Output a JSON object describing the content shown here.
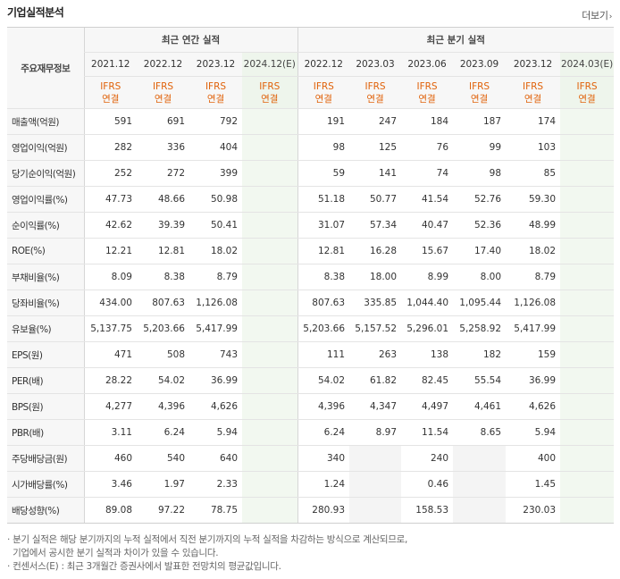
{
  "title": "기업실적분석",
  "more_label": "더보기",
  "more_icon": "chevron-right-icon",
  "header": {
    "rowhead": "주요재무정보",
    "annual_group": "최근 연간 실적",
    "quarter_group": "최근 분기 실적",
    "annual_periods": [
      "2021.12",
      "2022.12",
      "2023.12",
      "2024.12(E)"
    ],
    "quarter_periods": [
      "2022.12",
      "2023.03",
      "2023.06",
      "2023.09",
      "2023.12",
      "2024.03(E)"
    ],
    "ifrs_line1": "IFRS",
    "ifrs_line2": "연결"
  },
  "rows": [
    {
      "label": "매출액(억원)",
      "annual": [
        "591",
        "691",
        "792",
        ""
      ],
      "quarter": [
        "191",
        "247",
        "184",
        "187",
        "174",
        ""
      ]
    },
    {
      "label": "영업이익(억원)",
      "annual": [
        "282",
        "336",
        "404",
        ""
      ],
      "quarter": [
        "98",
        "125",
        "76",
        "99",
        "103",
        ""
      ]
    },
    {
      "label": "당기순이익(억원)",
      "annual": [
        "252",
        "272",
        "399",
        ""
      ],
      "quarter": [
        "59",
        "141",
        "74",
        "98",
        "85",
        ""
      ]
    },
    {
      "label": "영업이익률(%)",
      "annual": [
        "47.73",
        "48.66",
        "50.98",
        ""
      ],
      "quarter": [
        "51.18",
        "50.77",
        "41.54",
        "52.76",
        "59.30",
        ""
      ]
    },
    {
      "label": "순이익률(%)",
      "annual": [
        "42.62",
        "39.39",
        "50.41",
        ""
      ],
      "quarter": [
        "31.07",
        "57.34",
        "40.47",
        "52.36",
        "48.99",
        ""
      ]
    },
    {
      "label": "ROE(%)",
      "annual": [
        "12.21",
        "12.81",
        "18.02",
        ""
      ],
      "quarter": [
        "12.81",
        "16.28",
        "15.67",
        "17.40",
        "18.02",
        ""
      ]
    },
    {
      "label": "부채비율(%)",
      "annual": [
        "8.09",
        "8.38",
        "8.79",
        ""
      ],
      "quarter": [
        "8.38",
        "18.00",
        "8.99",
        "8.00",
        "8.79",
        ""
      ]
    },
    {
      "label": "당좌비율(%)",
      "annual": [
        "434.00",
        "807.63",
        "1,126.08",
        ""
      ],
      "quarter": [
        "807.63",
        "335.85",
        "1,044.40",
        "1,095.44",
        "1,126.08",
        ""
      ]
    },
    {
      "label": "유보율(%)",
      "annual": [
        "5,137.75",
        "5,203.66",
        "5,417.99",
        ""
      ],
      "quarter": [
        "5,203.66",
        "5,157.52",
        "5,296.01",
        "5,258.92",
        "5,417.99",
        ""
      ]
    },
    {
      "label": "EPS(원)",
      "annual": [
        "471",
        "508",
        "743",
        ""
      ],
      "quarter": [
        "111",
        "263",
        "138",
        "182",
        "159",
        ""
      ]
    },
    {
      "label": "PER(배)",
      "annual": [
        "28.22",
        "54.02",
        "36.99",
        ""
      ],
      "quarter": [
        "54.02",
        "61.82",
        "82.45",
        "55.54",
        "36.99",
        ""
      ]
    },
    {
      "label": "BPS(원)",
      "annual": [
        "4,277",
        "4,396",
        "4,626",
        ""
      ],
      "quarter": [
        "4,396",
        "4,347",
        "4,497",
        "4,461",
        "4,626",
        ""
      ]
    },
    {
      "label": "PBR(배)",
      "annual": [
        "3.11",
        "6.24",
        "5.94",
        ""
      ],
      "quarter": [
        "6.24",
        "8.97",
        "11.54",
        "8.65",
        "5.94",
        ""
      ]
    },
    {
      "label": "주당배당금(원)",
      "annual": [
        "460",
        "540",
        "640",
        ""
      ],
      "quarter": [
        "340",
        "",
        "240",
        "",
        "400",
        ""
      ]
    },
    {
      "label": "시가배당률(%)",
      "annual": [
        "3.46",
        "1.97",
        "2.33",
        ""
      ],
      "quarter": [
        "1.24",
        "",
        "0.46",
        "",
        "1.45",
        ""
      ]
    },
    {
      "label": "배당성향(%)",
      "annual": [
        "89.08",
        "97.22",
        "78.75",
        ""
      ],
      "quarter": [
        "280.93",
        "",
        "158.53",
        "",
        "230.03",
        ""
      ]
    }
  ],
  "notes": [
    "· 분기 실적은 해당 분기까지의 누적 실적에서 직전 분기까지의 누적 실적을 차감하는 방식으로 계산되므로,",
    "  기업에서 공시한 분기 실적과 차이가 있을 수 있습니다.",
    "· 컨센서스(E) : 최근 3개월간 증권사에서 발표한 전망치의 평균값입니다."
  ]
}
